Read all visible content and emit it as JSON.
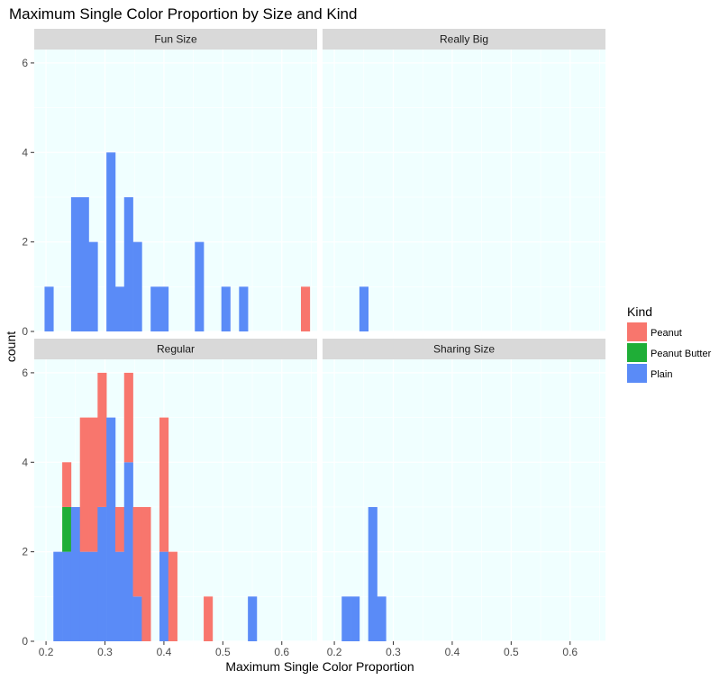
{
  "chart_data": {
    "type": "bar",
    "subtype": "faceted stacked histogram",
    "title": "Maximum Single Color Proportion by Size and Kind",
    "xlabel": "Maximum Single Color Proportion",
    "ylabel": "count",
    "xlim": [
      0.18,
      0.66
    ],
    "ylim": [
      0,
      6.3
    ],
    "x_ticks": [
      "0.2",
      "0.3",
      "0.4",
      "0.5",
      "0.6"
    ],
    "x_tick_values": [
      0.2,
      0.3,
      0.4,
      0.5,
      0.6
    ],
    "y_ticks": [
      "0",
      "2",
      "4",
      "6"
    ],
    "y_tick_values": [
      0,
      2,
      4,
      6
    ],
    "bin_width": 0.015,
    "grid": true,
    "panel_background": "#f0ffff",
    "grid_color": "#ffffff",
    "strip_background": "#d9d9d9",
    "legend": {
      "title": "Kind",
      "position": "right",
      "items": [
        {
          "label": "Peanut",
          "color": "#f8766d"
        },
        {
          "label": "Peanut Butter",
          "color": "#1fae37"
        },
        {
          "label": "Plain",
          "color": "#5a8bf7"
        }
      ]
    },
    "facets": [
      {
        "name": "Fun Size",
        "bars": [
          {
            "x": 0.205,
            "Peanut": 0,
            "Peanut Butter": 0,
            "Plain": 1
          },
          {
            "x": 0.25,
            "Peanut": 0,
            "Peanut Butter": 0,
            "Plain": 3
          },
          {
            "x": 0.265,
            "Peanut": 0,
            "Peanut Butter": 0,
            "Plain": 3
          },
          {
            "x": 0.28,
            "Peanut": 0,
            "Peanut Butter": 0,
            "Plain": 2
          },
          {
            "x": 0.31,
            "Peanut": 0,
            "Peanut Butter": 0,
            "Plain": 4
          },
          {
            "x": 0.325,
            "Peanut": 0,
            "Peanut Butter": 0,
            "Plain": 1
          },
          {
            "x": 0.34,
            "Peanut": 0,
            "Peanut Butter": 0,
            "Plain": 3
          },
          {
            "x": 0.355,
            "Peanut": 0,
            "Peanut Butter": 0,
            "Plain": 2
          },
          {
            "x": 0.385,
            "Peanut": 0,
            "Peanut Butter": 0,
            "Plain": 1
          },
          {
            "x": 0.4,
            "Peanut": 0,
            "Peanut Butter": 0,
            "Plain": 1
          },
          {
            "x": 0.46,
            "Peanut": 0,
            "Peanut Butter": 0,
            "Plain": 2
          },
          {
            "x": 0.505,
            "Peanut": 0,
            "Peanut Butter": 0,
            "Plain": 1
          },
          {
            "x": 0.535,
            "Peanut": 0,
            "Peanut Butter": 0,
            "Plain": 1
          },
          {
            "x": 0.64,
            "Peanut": 1,
            "Peanut Butter": 0,
            "Plain": 0
          }
        ]
      },
      {
        "name": "Really Big",
        "bars": [
          {
            "x": 0.25,
            "Peanut": 0,
            "Peanut Butter": 0,
            "Plain": 1
          }
        ]
      },
      {
        "name": "Regular",
        "bars": [
          {
            "x": 0.22,
            "Peanut": 0,
            "Peanut Butter": 0,
            "Plain": 2
          },
          {
            "x": 0.235,
            "Peanut": 1,
            "Peanut Butter": 1,
            "Plain": 2
          },
          {
            "x": 0.25,
            "Peanut": 0,
            "Peanut Butter": 0,
            "Plain": 3
          },
          {
            "x": 0.265,
            "Peanut": 3,
            "Peanut Butter": 0,
            "Plain": 2
          },
          {
            "x": 0.28,
            "Peanut": 3,
            "Peanut Butter": 0,
            "Plain": 2
          },
          {
            "x": 0.295,
            "Peanut": 3,
            "Peanut Butter": 0,
            "Plain": 3
          },
          {
            "x": 0.31,
            "Peanut": 0,
            "Peanut Butter": 0,
            "Plain": 5
          },
          {
            "x": 0.325,
            "Peanut": 1,
            "Peanut Butter": 0,
            "Plain": 2
          },
          {
            "x": 0.34,
            "Peanut": 2,
            "Peanut Butter": 0,
            "Plain": 4
          },
          {
            "x": 0.355,
            "Peanut": 2,
            "Peanut Butter": 0,
            "Plain": 1
          },
          {
            "x": 0.37,
            "Peanut": 3,
            "Peanut Butter": 0,
            "Plain": 0
          },
          {
            "x": 0.4,
            "Peanut": 3,
            "Peanut Butter": 0,
            "Plain": 2
          },
          {
            "x": 0.415,
            "Peanut": 2,
            "Peanut Butter": 0,
            "Plain": 0
          },
          {
            "x": 0.475,
            "Peanut": 1,
            "Peanut Butter": 0,
            "Plain": 0
          },
          {
            "x": 0.55,
            "Peanut": 0,
            "Peanut Butter": 0,
            "Plain": 1
          }
        ]
      },
      {
        "name": "Sharing Size",
        "bars": [
          {
            "x": 0.22,
            "Peanut": 0,
            "Peanut Butter": 0,
            "Plain": 1
          },
          {
            "x": 0.235,
            "Peanut": 0,
            "Peanut Butter": 0,
            "Plain": 1
          },
          {
            "x": 0.265,
            "Peanut": 0,
            "Peanut Butter": 0,
            "Plain": 3
          },
          {
            "x": 0.28,
            "Peanut": 0,
            "Peanut Butter": 0,
            "Plain": 1
          }
        ]
      }
    ]
  }
}
